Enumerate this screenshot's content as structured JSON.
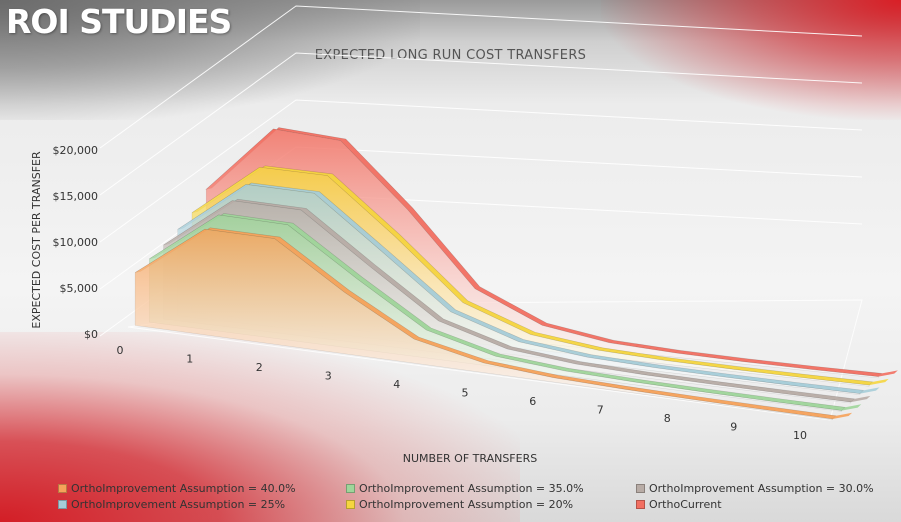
{
  "slide": {
    "title": "ROI STUDIES"
  },
  "chart_data": {
    "type": "area",
    "view": "3d",
    "title": "EXPECTED  LONG RUN COST TRANSFERS",
    "xlabel": "NUMBER OF TRANSFERS",
    "ylabel": "EXPECTED COST PER TRANSFER",
    "x": [
      0,
      1,
      2,
      3,
      4,
      5,
      6,
      7,
      8,
      9,
      10
    ],
    "y_ticks": [
      "$0",
      "$5,000",
      "$10,000",
      "$15,000",
      "$20,000"
    ],
    "ylim": [
      0,
      20000
    ],
    "grid": true,
    "legend_position": "bottom",
    "series": [
      {
        "name": "OrthoImprovement Assumption = 40.0%",
        "color": "#f6a25a",
        "values": [
          5500,
          11000,
          11000,
          6400,
          2500,
          1000,
          450,
          250,
          150,
          100,
          80
        ]
      },
      {
        "name": "OrthoImprovement Assumption = 35.0%",
        "color": "#9fd59a",
        "values": [
          6600,
          12100,
          12000,
          7300,
          2900,
          1100,
          500,
          280,
          170,
          110,
          90
        ]
      },
      {
        "name": "OrthoImprovement Assumption = 30.0%",
        "color": "#b8aca6",
        "values": [
          7700,
          13200,
          13100,
          8100,
          3300,
          1250,
          560,
          310,
          190,
          130,
          100
        ]
      },
      {
        "name": "OrthoImprovement Assumption = 25%",
        "color": "#a6cdd8",
        "values": [
          9000,
          14500,
          14400,
          9100,
          3700,
          1400,
          620,
          340,
          210,
          140,
          110
        ]
      },
      {
        "name": "OrthoImprovement Assumption = 20%",
        "color": "#f5d53f",
        "values": [
          10400,
          15900,
          15800,
          10200,
          4100,
          1550,
          680,
          380,
          230,
          150,
          120
        ]
      },
      {
        "name": "OrthoCurrent",
        "color": "#f26f61",
        "values": [
          12500,
          19500,
          19000,
          12500,
          5000,
          1900,
          800,
          440,
          260,
          170,
          130
        ]
      }
    ]
  },
  "colors": {
    "accent": "#d31e26",
    "slide_title": "#ffffff"
  }
}
